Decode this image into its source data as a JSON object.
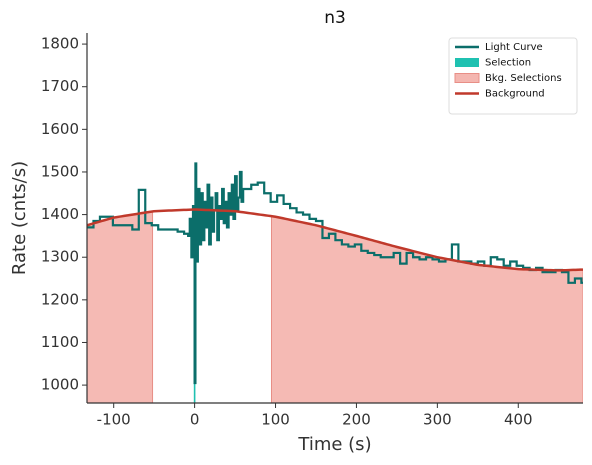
{
  "chart_data": {
    "type": "step",
    "title": "n3",
    "xlabel": "Time (s)",
    "ylabel": "Rate (cnts/s)",
    "xlim": [
      -133,
      480
    ],
    "ylim": [
      958,
      1826
    ],
    "xticks": [
      -100,
      0,
      100,
      200,
      300,
      400
    ],
    "yticks": [
      1000,
      1100,
      1200,
      1300,
      1400,
      1500,
      1600,
      1700,
      1800
    ],
    "legend": "upper right",
    "series": [
      {
        "name": "Light Curve",
        "color": "#0b6e6a",
        "kind": "step",
        "x": [
          -133,
          -125,
          -117,
          -109,
          -101,
          -93,
          -85,
          -77,
          -69,
          -61,
          -53,
          -45,
          -37,
          -29,
          -21,
          -13,
          -8,
          -6,
          -4,
          -2,
          0,
          1,
          2,
          4,
          6,
          8,
          10,
          12,
          14,
          16,
          18,
          20,
          22,
          24,
          26,
          28,
          30,
          32,
          34,
          36,
          38,
          40,
          42,
          44,
          46,
          48,
          50,
          52,
          54,
          56,
          58,
          60,
          62,
          70,
          78,
          86,
          94,
          102,
          110,
          118,
          126,
          134,
          142,
          150,
          158,
          166,
          174,
          182,
          190,
          198,
          206,
          214,
          222,
          230,
          238,
          246,
          254,
          262,
          270,
          278,
          286,
          294,
          302,
          310,
          318,
          326,
          334,
          342,
          350,
          358,
          366,
          374,
          382,
          390,
          398,
          406,
          414,
          422,
          430,
          438,
          446,
          454,
          462,
          470,
          478
        ],
        "values": [
          1370,
          1385,
          1395,
          1395,
          1375,
          1375,
          1375,
          1365,
          1458,
          1380,
          1375,
          1365,
          1365,
          1365,
          1360,
          1355,
          1350,
          1390,
          1300,
          1420,
          1005,
          1520,
          1290,
          1460,
          1330,
          1450,
          1340,
          1430,
          1370,
          1470,
          1330,
          1440,
          1360,
          1410,
          1450,
          1340,
          1420,
          1390,
          1460,
          1380,
          1430,
          1370,
          1450,
          1400,
          1470,
          1390,
          1490,
          1410,
          1440,
          1500,
          1430,
          1460,
          1460,
          1470,
          1475,
          1450,
          1430,
          1445,
          1425,
          1415,
          1405,
          1400,
          1390,
          1385,
          1345,
          1355,
          1340,
          1330,
          1325,
          1330,
          1315,
          1310,
          1305,
          1300,
          1300,
          1310,
          1285,
          1310,
          1300,
          1295,
          1300,
          1295,
          1290,
          1295,
          1330,
          1290,
          1290,
          1285,
          1290,
          1280,
          1300,
          1295,
          1280,
          1290,
          1280,
          1275,
          1270,
          1275,
          1265,
          1265,
          1270,
          1265,
          1240,
          1250,
          1240
        ]
      },
      {
        "name": "Selection",
        "color": "#1fc1b1",
        "kind": "band-under-step",
        "ranges": [
          [
            -1,
            1
          ]
        ]
      },
      {
        "name": "Bkg. Selections",
        "color": "#f4b6b0",
        "kind": "band-under-line",
        "ranges": [
          [
            -133,
            -52
          ],
          [
            95,
            480
          ]
        ]
      },
      {
        "name": "Background",
        "color": "#c0392b",
        "kind": "line",
        "x": [
          -133,
          -100,
          -50,
          0,
          50,
          100,
          150,
          200,
          250,
          300,
          350,
          400,
          450,
          480
        ],
        "values": [
          1375,
          1393,
          1408,
          1412,
          1408,
          1395,
          1375,
          1350,
          1324,
          1300,
          1282,
          1272,
          1269,
          1271
        ]
      }
    ]
  }
}
